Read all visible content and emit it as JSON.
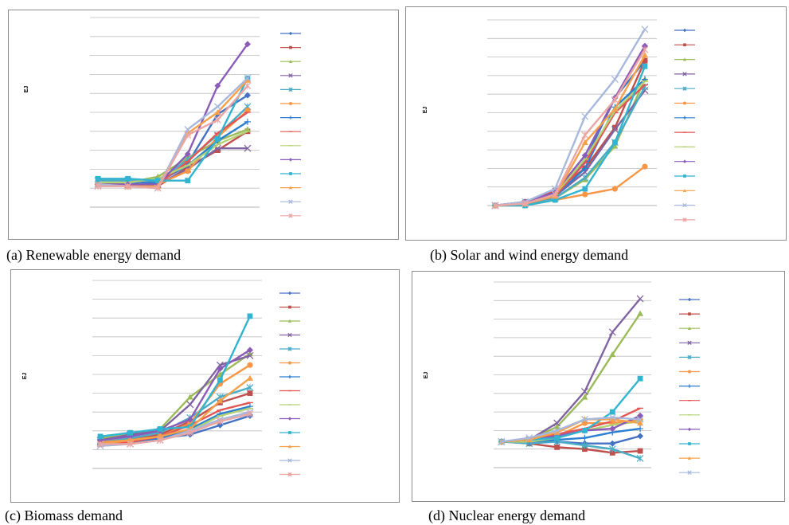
{
  "colors": [
    "#4472c4",
    "#c0504d",
    "#9bbb59",
    "#8064a2",
    "#4bacc6",
    "#f79646",
    "#2c7fd0",
    "#e45656",
    "#b4d274",
    "#8a5cb8",
    "#31b4cf",
    "#f5a04a",
    "#a7b8dc",
    "#eba5a3"
  ],
  "chart_data": [
    {
      "type": "line",
      "caption": "(a) Renewable energy demand",
      "ylabel": "EJ",
      "ylim": [
        0,
        10
      ],
      "grid": true,
      "legend": "right",
      "x": [
        1,
        2,
        3,
        4,
        5,
        6
      ],
      "series": [
        {
          "values": [
            1.3,
            1.3,
            1.4,
            2.3,
            4.9,
            5.9
          ]
        },
        {
          "values": [
            1.2,
            1.1,
            1.1,
            2.1,
            3.0,
            4.0
          ]
        },
        {
          "values": [
            1.3,
            1.3,
            1.6,
            2.6,
            3.5,
            4.1
          ]
        },
        {
          "values": [
            1.2,
            1.2,
            1.2,
            2.0,
            3.1,
            3.1
          ]
        },
        {
          "values": [
            1.4,
            1.4,
            1.4,
            2.5,
            3.8,
            5.3
          ]
        },
        {
          "values": [
            1.2,
            1.2,
            1.2,
            1.9,
            3.7,
            5.1
          ]
        },
        {
          "values": [
            1.2,
            1.2,
            1.3,
            2.2,
            3.5,
            4.5
          ]
        },
        {
          "values": [
            1.2,
            1.1,
            1.2,
            2.4,
            3.9,
            5.0
          ]
        },
        {
          "values": [
            1.3,
            1.3,
            1.5,
            2.2,
            3.3,
            4.0
          ]
        },
        {
          "values": [
            1.2,
            1.2,
            1.2,
            2.8,
            6.4,
            8.6
          ]
        },
        {
          "values": [
            1.5,
            1.5,
            1.4,
            1.4,
            3.6,
            6.8
          ]
        },
        {
          "values": [
            1.2,
            1.1,
            1.1,
            3.9,
            5.0,
            6.7
          ]
        },
        {
          "values": [
            1.2,
            1.1,
            1.0,
            4.1,
            5.3,
            6.8
          ]
        },
        {
          "values": [
            1.1,
            1.1,
            1.0,
            3.8,
            4.6,
            6.4
          ]
        }
      ]
    },
    {
      "type": "line",
      "caption": "(b) Solar and wind energy demand",
      "ylabel": "EJ",
      "ylim": [
        0,
        10
      ],
      "grid": true,
      "legend": "right",
      "x": [
        1,
        2,
        3,
        4,
        5,
        6
      ],
      "series": [
        {
          "values": [
            0.0,
            0.1,
            0.6,
            2.4,
            5.8,
            7.8
          ]
        },
        {
          "values": [
            0.0,
            0.2,
            0.8,
            2.0,
            4.2,
            7.8
          ]
        },
        {
          "values": [
            0.0,
            0.1,
            0.4,
            1.4,
            3.2,
            6.8
          ]
        },
        {
          "values": [
            0.0,
            0.1,
            0.5,
            1.8,
            4.1,
            6.2
          ]
        },
        {
          "values": [
            0.0,
            0.1,
            0.4,
            1.5,
            3.4,
            6.4
          ]
        },
        {
          "values": [
            0.0,
            0.0,
            0.3,
            0.6,
            0.9,
            2.1
          ]
        },
        {
          "values": [
            0.0,
            0.1,
            0.5,
            2.0,
            5.3,
            6.8
          ]
        },
        {
          "values": [
            0.0,
            0.1,
            0.5,
            2.3,
            5.0,
            6.5
          ]
        },
        {
          "values": [
            0.0,
            0.1,
            0.6,
            2.5,
            5.1,
            6.7
          ]
        },
        {
          "values": [
            0.0,
            0.2,
            0.7,
            2.7,
            5.8,
            8.6
          ]
        },
        {
          "values": [
            0.0,
            0.0,
            0.3,
            0.9,
            3.4,
            7.5
          ]
        },
        {
          "values": [
            0.0,
            0.1,
            0.5,
            3.4,
            5.2,
            8.1
          ]
        },
        {
          "values": [
            0.0,
            0.2,
            0.9,
            4.8,
            6.8,
            9.5
          ]
        },
        {
          "values": [
            0.0,
            0.1,
            0.6,
            3.8,
            5.7,
            8.4
          ]
        }
      ]
    },
    {
      "type": "line",
      "caption": "(c) Biomass demand",
      "ylabel": "EJ",
      "ylim": [
        0,
        10
      ],
      "grid": true,
      "legend": "right",
      "x": [
        1,
        2,
        3,
        4,
        5,
        6
      ],
      "series": [
        {
          "values": [
            1.3,
            1.5,
            1.6,
            1.8,
            2.3,
            2.8
          ]
        },
        {
          "values": [
            1.3,
            1.5,
            1.8,
            2.5,
            3.5,
            4.0
          ]
        },
        {
          "values": [
            1.6,
            1.8,
            2.1,
            3.8,
            5.0,
            6.1
          ]
        },
        {
          "values": [
            1.5,
            1.8,
            2.0,
            3.4,
            5.5,
            6.0
          ]
        },
        {
          "values": [
            1.4,
            1.6,
            1.9,
            2.7,
            3.8,
            4.3
          ]
        },
        {
          "values": [
            1.4,
            1.5,
            1.7,
            2.4,
            4.5,
            5.5
          ]
        },
        {
          "values": [
            1.3,
            1.4,
            1.6,
            2.1,
            2.9,
            3.3
          ]
        },
        {
          "values": [
            1.3,
            1.4,
            1.7,
            2.3,
            3.1,
            3.5
          ]
        },
        {
          "values": [
            1.2,
            1.3,
            1.5,
            2.0,
            2.8,
            3.2
          ]
        },
        {
          "values": [
            1.5,
            1.7,
            2.0,
            2.6,
            5.3,
            6.3
          ]
        },
        {
          "values": [
            1.7,
            1.9,
            2.1,
            2.2,
            4.7,
            8.1
          ]
        },
        {
          "values": [
            1.3,
            1.5,
            1.7,
            2.1,
            3.6,
            4.8
          ]
        },
        {
          "values": [
            1.2,
            1.3,
            1.5,
            2.0,
            2.6,
            3.0
          ]
        },
        {
          "values": [
            1.3,
            1.3,
            1.5,
            1.9,
            2.5,
            2.9
          ]
        }
      ]
    },
    {
      "type": "line",
      "caption": "(d) Nuclear energy demand",
      "ylabel": "EJ",
      "ylim": [
        0,
        10
      ],
      "grid": true,
      "legend": "right",
      "x": [
        1,
        2,
        3,
        4,
        5,
        6
      ],
      "series": [
        {
          "values": [
            1.4,
            1.4,
            1.4,
            1.3,
            1.3,
            1.7
          ]
        },
        {
          "values": [
            1.4,
            1.3,
            1.1,
            1.0,
            0.8,
            0.9
          ]
        },
        {
          "values": [
            1.4,
            1.5,
            2.2,
            3.8,
            6.1,
            8.3
          ]
        },
        {
          "values": [
            1.4,
            1.5,
            2.4,
            4.1,
            7.3,
            9.1
          ]
        },
        {
          "values": [
            1.4,
            1.3,
            1.4,
            1.2,
            1.0,
            0.5
          ]
        },
        {
          "values": [
            1.4,
            1.5,
            1.7,
            2.4,
            2.4,
            2.6
          ]
        },
        {
          "values": [
            1.4,
            1.4,
            1.5,
            1.6,
            1.9,
            2.1
          ]
        },
        {
          "values": [
            1.4,
            1.5,
            1.8,
            2.1,
            2.5,
            3.2
          ]
        },
        {
          "values": [
            1.4,
            1.4,
            1.6,
            2.0,
            2.3,
            2.5
          ]
        },
        {
          "values": [
            1.4,
            1.5,
            1.7,
            2.0,
            2.1,
            2.8
          ]
        },
        {
          "values": [
            1.4,
            1.5,
            1.6,
            2.0,
            3.0,
            4.8
          ]
        },
        {
          "values": [
            1.4,
            1.5,
            1.9,
            2.6,
            2.6,
            2.4
          ]
        },
        {
          "values": [
            1.4,
            1.6,
            2.0,
            2.6,
            2.7,
            2.6
          ]
        }
      ]
    }
  ]
}
